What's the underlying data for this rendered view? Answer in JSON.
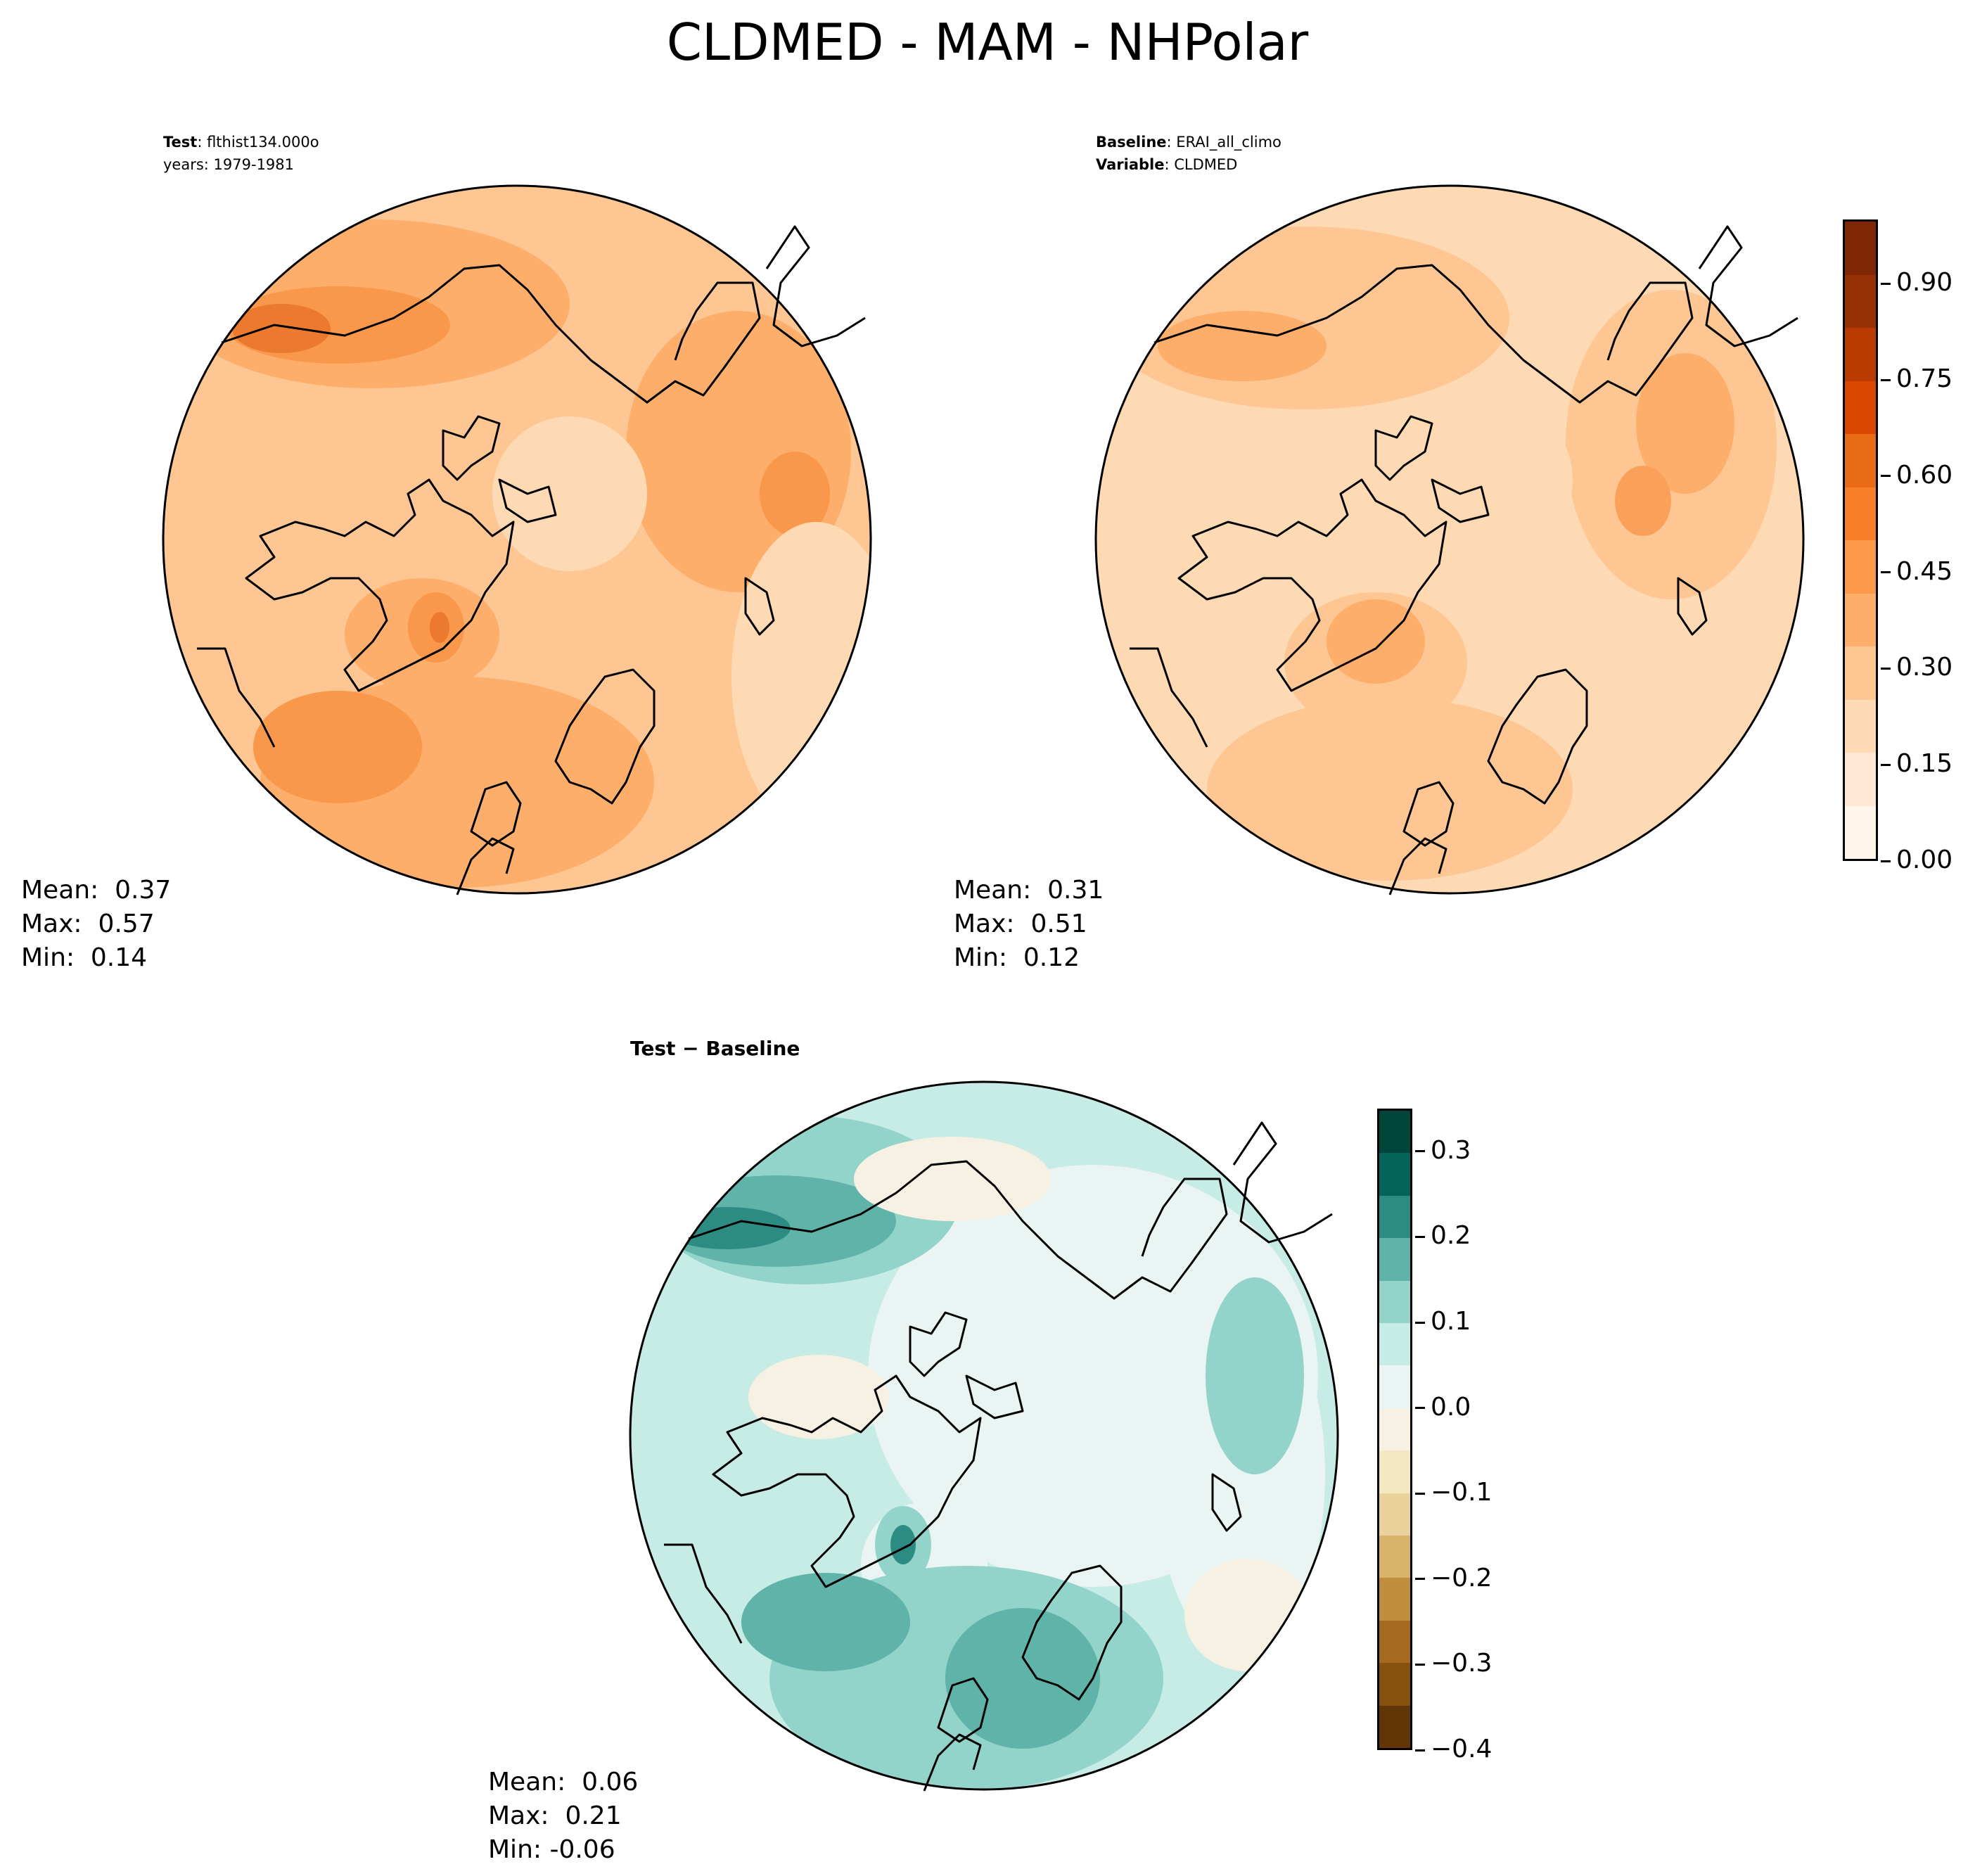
{
  "figure": {
    "title": "CLDMED - MAM - NHPolar"
  },
  "test_panel": {
    "label_bold": "Test",
    "label_value": ": flthist134.000o",
    "years_label": "years: 1979-1981",
    "stats": {
      "mean": "Mean:  0.37",
      "max": "Max:  0.57",
      "min": "Min:  0.14"
    }
  },
  "baseline_panel": {
    "label_bold": "Baseline",
    "label_value": ": ERAI_all_climo",
    "variable_bold": "Variable",
    "variable_value": ": CLDMED",
    "stats": {
      "mean": "Mean:  0.31",
      "max": "Max:  0.51",
      "min": "Min:  0.12"
    }
  },
  "diff_panel": {
    "title": "Test − Baseline",
    "stats": {
      "mean": "Mean:  0.06",
      "max": "Max:  0.21",
      "min": "Min: -0.06"
    }
  },
  "colorbar_main": {
    "ticks": [
      "0.00",
      "0.15",
      "0.30",
      "0.45",
      "0.60",
      "0.75",
      "0.90"
    ],
    "tick_values": [
      0,
      0.15,
      0.3,
      0.45,
      0.6,
      0.75,
      0.9
    ],
    "range": [
      0,
      1.0
    ],
    "colors": [
      "#fff5eb",
      "#fee8d3",
      "#fdd9b4",
      "#fdc692",
      "#fdae6b",
      "#fd9849",
      "#f77f2a",
      "#e96b16",
      "#d94801",
      "#b93b02",
      "#973005",
      "#7f2704"
    ]
  },
  "colorbar_diff": {
    "ticks": [
      "0.3",
      "0.2",
      "0.1",
      "0.0",
      "−0.1",
      "−0.2",
      "−0.3",
      "−0.4"
    ],
    "tick_values": [
      0.3,
      0.2,
      0.1,
      0.0,
      -0.1,
      -0.2,
      -0.3,
      -0.4
    ],
    "range": [
      -0.4,
      0.35
    ],
    "colors": [
      "#00443a",
      "#05645a",
      "#2c8c84",
      "#5fb3a9",
      "#93d4ca",
      "#c7ebe5",
      "#eaf5f3",
      "#f7f1e4",
      "#f4e7c2",
      "#e9d29c",
      "#d8b46b",
      "#c08f3e",
      "#a46a1f",
      "#86500d",
      "#613505"
    ]
  },
  "map_colors": {
    "test": [
      "#fdc692",
      "#fdae6b",
      "#f9984a",
      "#ec7a2e",
      "#fdd9b4"
    ],
    "baseline": [
      "#fdd9b4",
      "#fdc692",
      "#fdae6b",
      "#f9a15b"
    ],
    "diff": [
      "#c7ebe5",
      "#93d4ca",
      "#5fb3a9",
      "#2c8c84",
      "#eaf5f3",
      "#f7f1e4"
    ]
  }
}
